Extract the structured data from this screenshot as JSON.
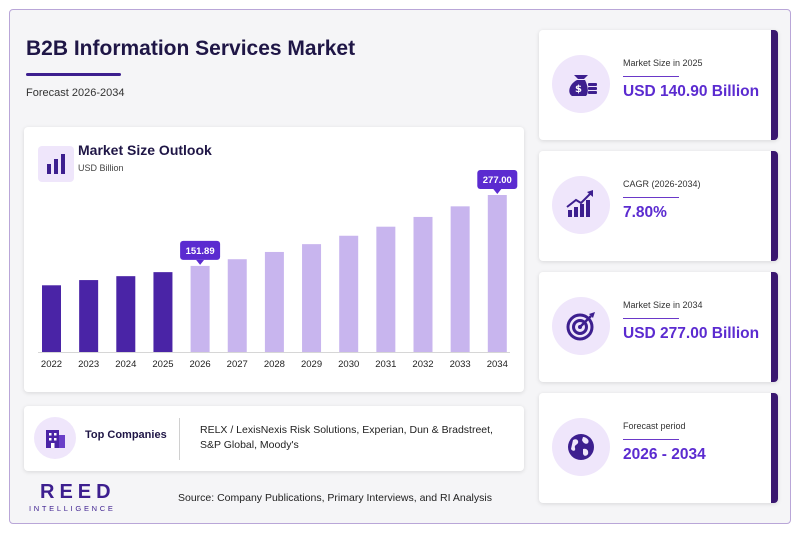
{
  "header": {
    "title": "B2B Information Services Market",
    "subtitle": "Forecast 2026-2034"
  },
  "chart_data": {
    "type": "bar",
    "title": "Market Size Outlook",
    "unit": "USD Billion",
    "categories": [
      "2022",
      "2023",
      "2024",
      "2025",
      "2026",
      "2027",
      "2028",
      "2029",
      "2030",
      "2031",
      "2032",
      "2033",
      "2034"
    ],
    "values": [
      117.7,
      126.9,
      133.8,
      140.9,
      151.89,
      163.7,
      176.5,
      190.3,
      205.1,
      221.1,
      238.3,
      257.0,
      277.0
    ],
    "historical_count": 4,
    "callouts": [
      {
        "index": 4,
        "label": "151.89"
      },
      {
        "index": 12,
        "label": "277.00"
      }
    ],
    "colors": {
      "historical": "#4a24a6",
      "forecast": "#c8b5ee",
      "callout": "#5b2bd0"
    },
    "grid": false
  },
  "companies": {
    "label": "Top Companies",
    "text": "RELX / LexisNexis Risk Solutions, Experian, Dun & Bradstreet, S&P Global, Moody's"
  },
  "stats": [
    {
      "icon": "money-bag-icon",
      "label": "Market Size in 2025",
      "value": "USD 140.90 Billion"
    },
    {
      "icon": "growth-chart-icon",
      "label": "CAGR (2026-2034)",
      "value": "7.80%"
    },
    {
      "icon": "target-icon",
      "label": "Market Size in 2034",
      "value": "USD 277.00 Billion"
    },
    {
      "icon": "globe-icon",
      "label": "Forecast period",
      "value": "2026 - 2034"
    }
  ],
  "logo": {
    "main": "REED",
    "sub": "INTELLIGENCE"
  },
  "source": "Source: Company Publications, Primary Interviews, and RI Analysis"
}
